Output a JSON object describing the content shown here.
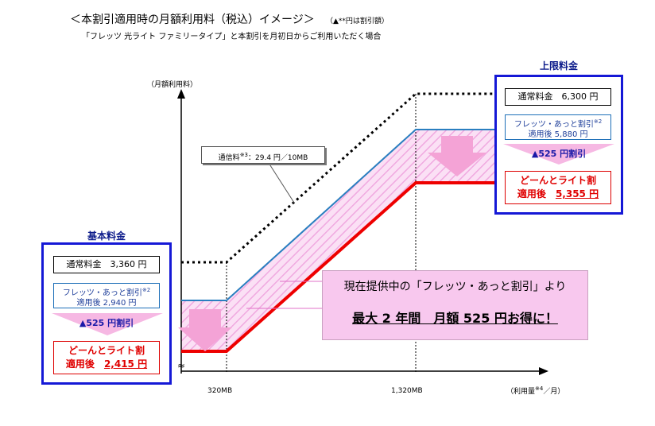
{
  "title": "＜本割引適用時の月額利用料（税込）イメージ＞",
  "title_note": "（▲**円は割引額）",
  "subtitle": "「フレッツ 光ライト ファミリータイプ」と本割引を月初日からご利用いただく場合",
  "axis": {
    "y_label": "（月額利用料）",
    "x_label_prefix": "（利用量",
    "x_label_sup": "※4",
    "x_label_suffix": "／月）",
    "x_tick_1": "320MB",
    "x_tick_2": "1,320MB",
    "break_mark": "≈"
  },
  "comm_rate": {
    "prefix": "通信料",
    "sup": "※3",
    "suffix": "：29.4 円／10MB"
  },
  "basic": {
    "title": "基本料金",
    "normal": "通常料金　3,360 円",
    "flets_line1": "フレッツ・あっと割引",
    "flets_sup": "※2",
    "flets_line2": "適用後 2,940 円",
    "discount": "▲525 円割引",
    "done_line1": "どーんとライト割",
    "done_line2_prefix": "適用後　",
    "done_price": "2,415 円"
  },
  "upper": {
    "title": "上限料金",
    "normal": "通常料金　6,300 円",
    "flets_line1": "フレッツ・あっと割引",
    "flets_sup": "※2",
    "flets_line2": "適用後 5,880 円",
    "discount": "▲525 円割引",
    "done_line1": "どーんとライト割",
    "done_line2_prefix": "適用後　",
    "done_price": "5,355 円"
  },
  "promo": {
    "line1": "現在提供中の「フレッツ・あっと割引」より",
    "line2": "最大 2 年間　月額 525 円お得に！"
  },
  "colors": {
    "normal_line": "#000000",
    "flets_line": "#2a7fc0",
    "done_line": "#ee0000",
    "band": "#f9c6ee",
    "arrow": "#f4a3d6",
    "box_border": "#1518d6"
  }
}
